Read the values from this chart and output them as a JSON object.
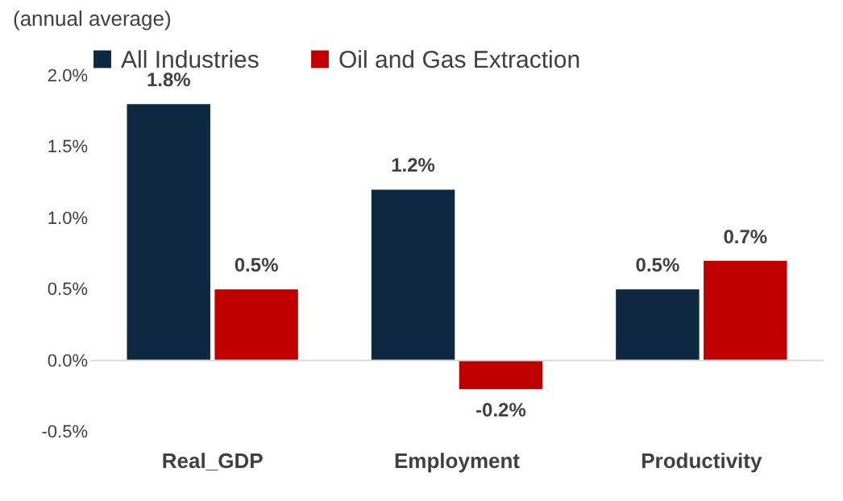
{
  "chart_data": {
    "type": "bar",
    "annotations": [
      "(annual average)"
    ],
    "categories": [
      "Real_GDP",
      "Employment",
      "Productivity"
    ],
    "series": [
      {
        "name": "All Industries",
        "color": "#0e2841",
        "values": [
          1.8,
          1.2,
          0.5
        ],
        "value_labels": [
          "1.8%",
          "1.2%",
          "0.5%"
        ]
      },
      {
        "name": "Oil and Gas Extraction",
        "color": "#c00000",
        "values": [
          0.5,
          -0.2,
          0.7
        ],
        "value_labels": [
          "0.5%",
          "-0.2%",
          "0.7%"
        ]
      }
    ],
    "ylim": [
      -0.5,
      2.0
    ],
    "yticks": [
      {
        "value": -0.5,
        "label": "-0.5%"
      },
      {
        "value": 0,
        "label": "0.0%"
      },
      {
        "value": 0.5,
        "label": "0.5%"
      },
      {
        "value": 1,
        "label": "1.0%"
      },
      {
        "value": 1.5,
        "label": "1.5%"
      },
      {
        "value": 2,
        "label": "2.0%"
      }
    ],
    "ref_lines": [
      {
        "axis": "y",
        "value": 0,
        "color": "#d9d9d9"
      }
    ],
    "legend": "top",
    "grid": false
  }
}
